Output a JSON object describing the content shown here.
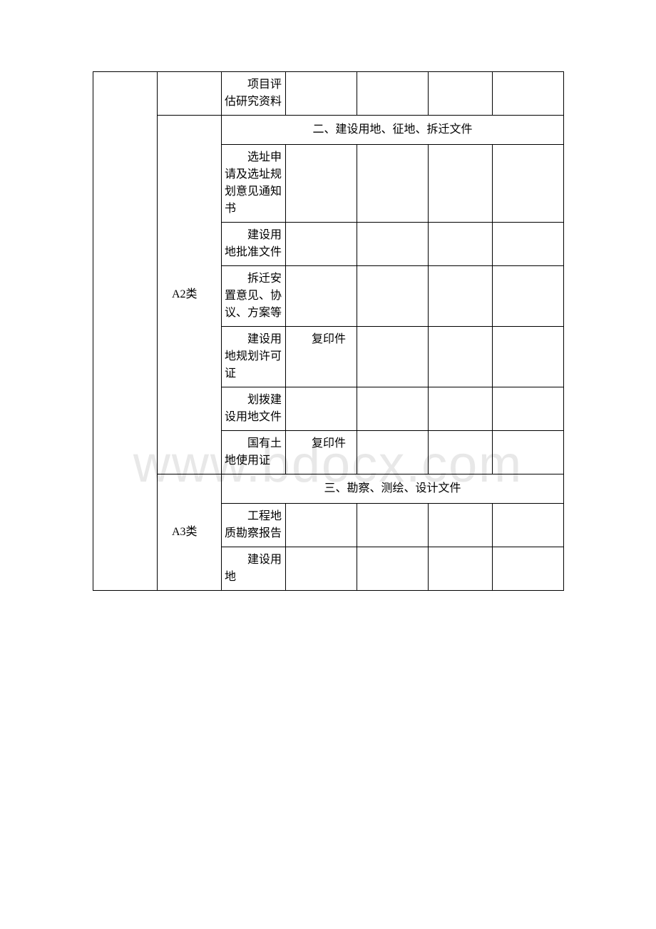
{
  "watermark": "www.bdocx.com",
  "table": {
    "rows": [
      {
        "type": "data",
        "col1_span": true,
        "col2_span": true,
        "col3": "项目评估研究资料",
        "col4": "",
        "col5": "",
        "col6": "",
        "col7": ""
      },
      {
        "type": "section",
        "col2": "A2类",
        "col2_rowspan": 7,
        "section_text": "二、建设用地、征地、拆迁文件"
      },
      {
        "type": "data",
        "col3": "选址申请及选址规划意见通知书",
        "col4": "",
        "col5": "",
        "col6": "",
        "col7": ""
      },
      {
        "type": "data",
        "col3": "建设用地批准文件",
        "col4": "",
        "col5": "",
        "col6": "",
        "col7": ""
      },
      {
        "type": "data",
        "col3": "拆迁安置意见、协议、方案等",
        "col4": "",
        "col5": "",
        "col6": "",
        "col7": ""
      },
      {
        "type": "data",
        "col3": "建设用地规划许可证",
        "col4": "复印件",
        "col5": "",
        "col6": "",
        "col7": ""
      },
      {
        "type": "data",
        "col3": "划拨建设用地文件",
        "col4": "",
        "col5": "",
        "col6": "",
        "col7": ""
      },
      {
        "type": "data",
        "col3": "国有土地使用证",
        "col4": "复印件",
        "col5": "",
        "col6": "",
        "col7": ""
      },
      {
        "type": "section",
        "col2": "A3类",
        "col2_rowspan": 3,
        "section_text": "三、勘察、测绘、设计文件"
      },
      {
        "type": "data",
        "col3": "工程地质勘察报告",
        "col4": "",
        "col5": "",
        "col6": "",
        "col7": ""
      },
      {
        "type": "data",
        "col3": "建设用地",
        "col4": "",
        "col5": "",
        "col6": "",
        "col7": ""
      }
    ]
  },
  "colors": {
    "background": "#ffffff",
    "border": "#000000",
    "text": "#000000",
    "watermark": "#e8e8e8"
  },
  "fonts": {
    "body_size": 16,
    "watermark_size": 72
  }
}
